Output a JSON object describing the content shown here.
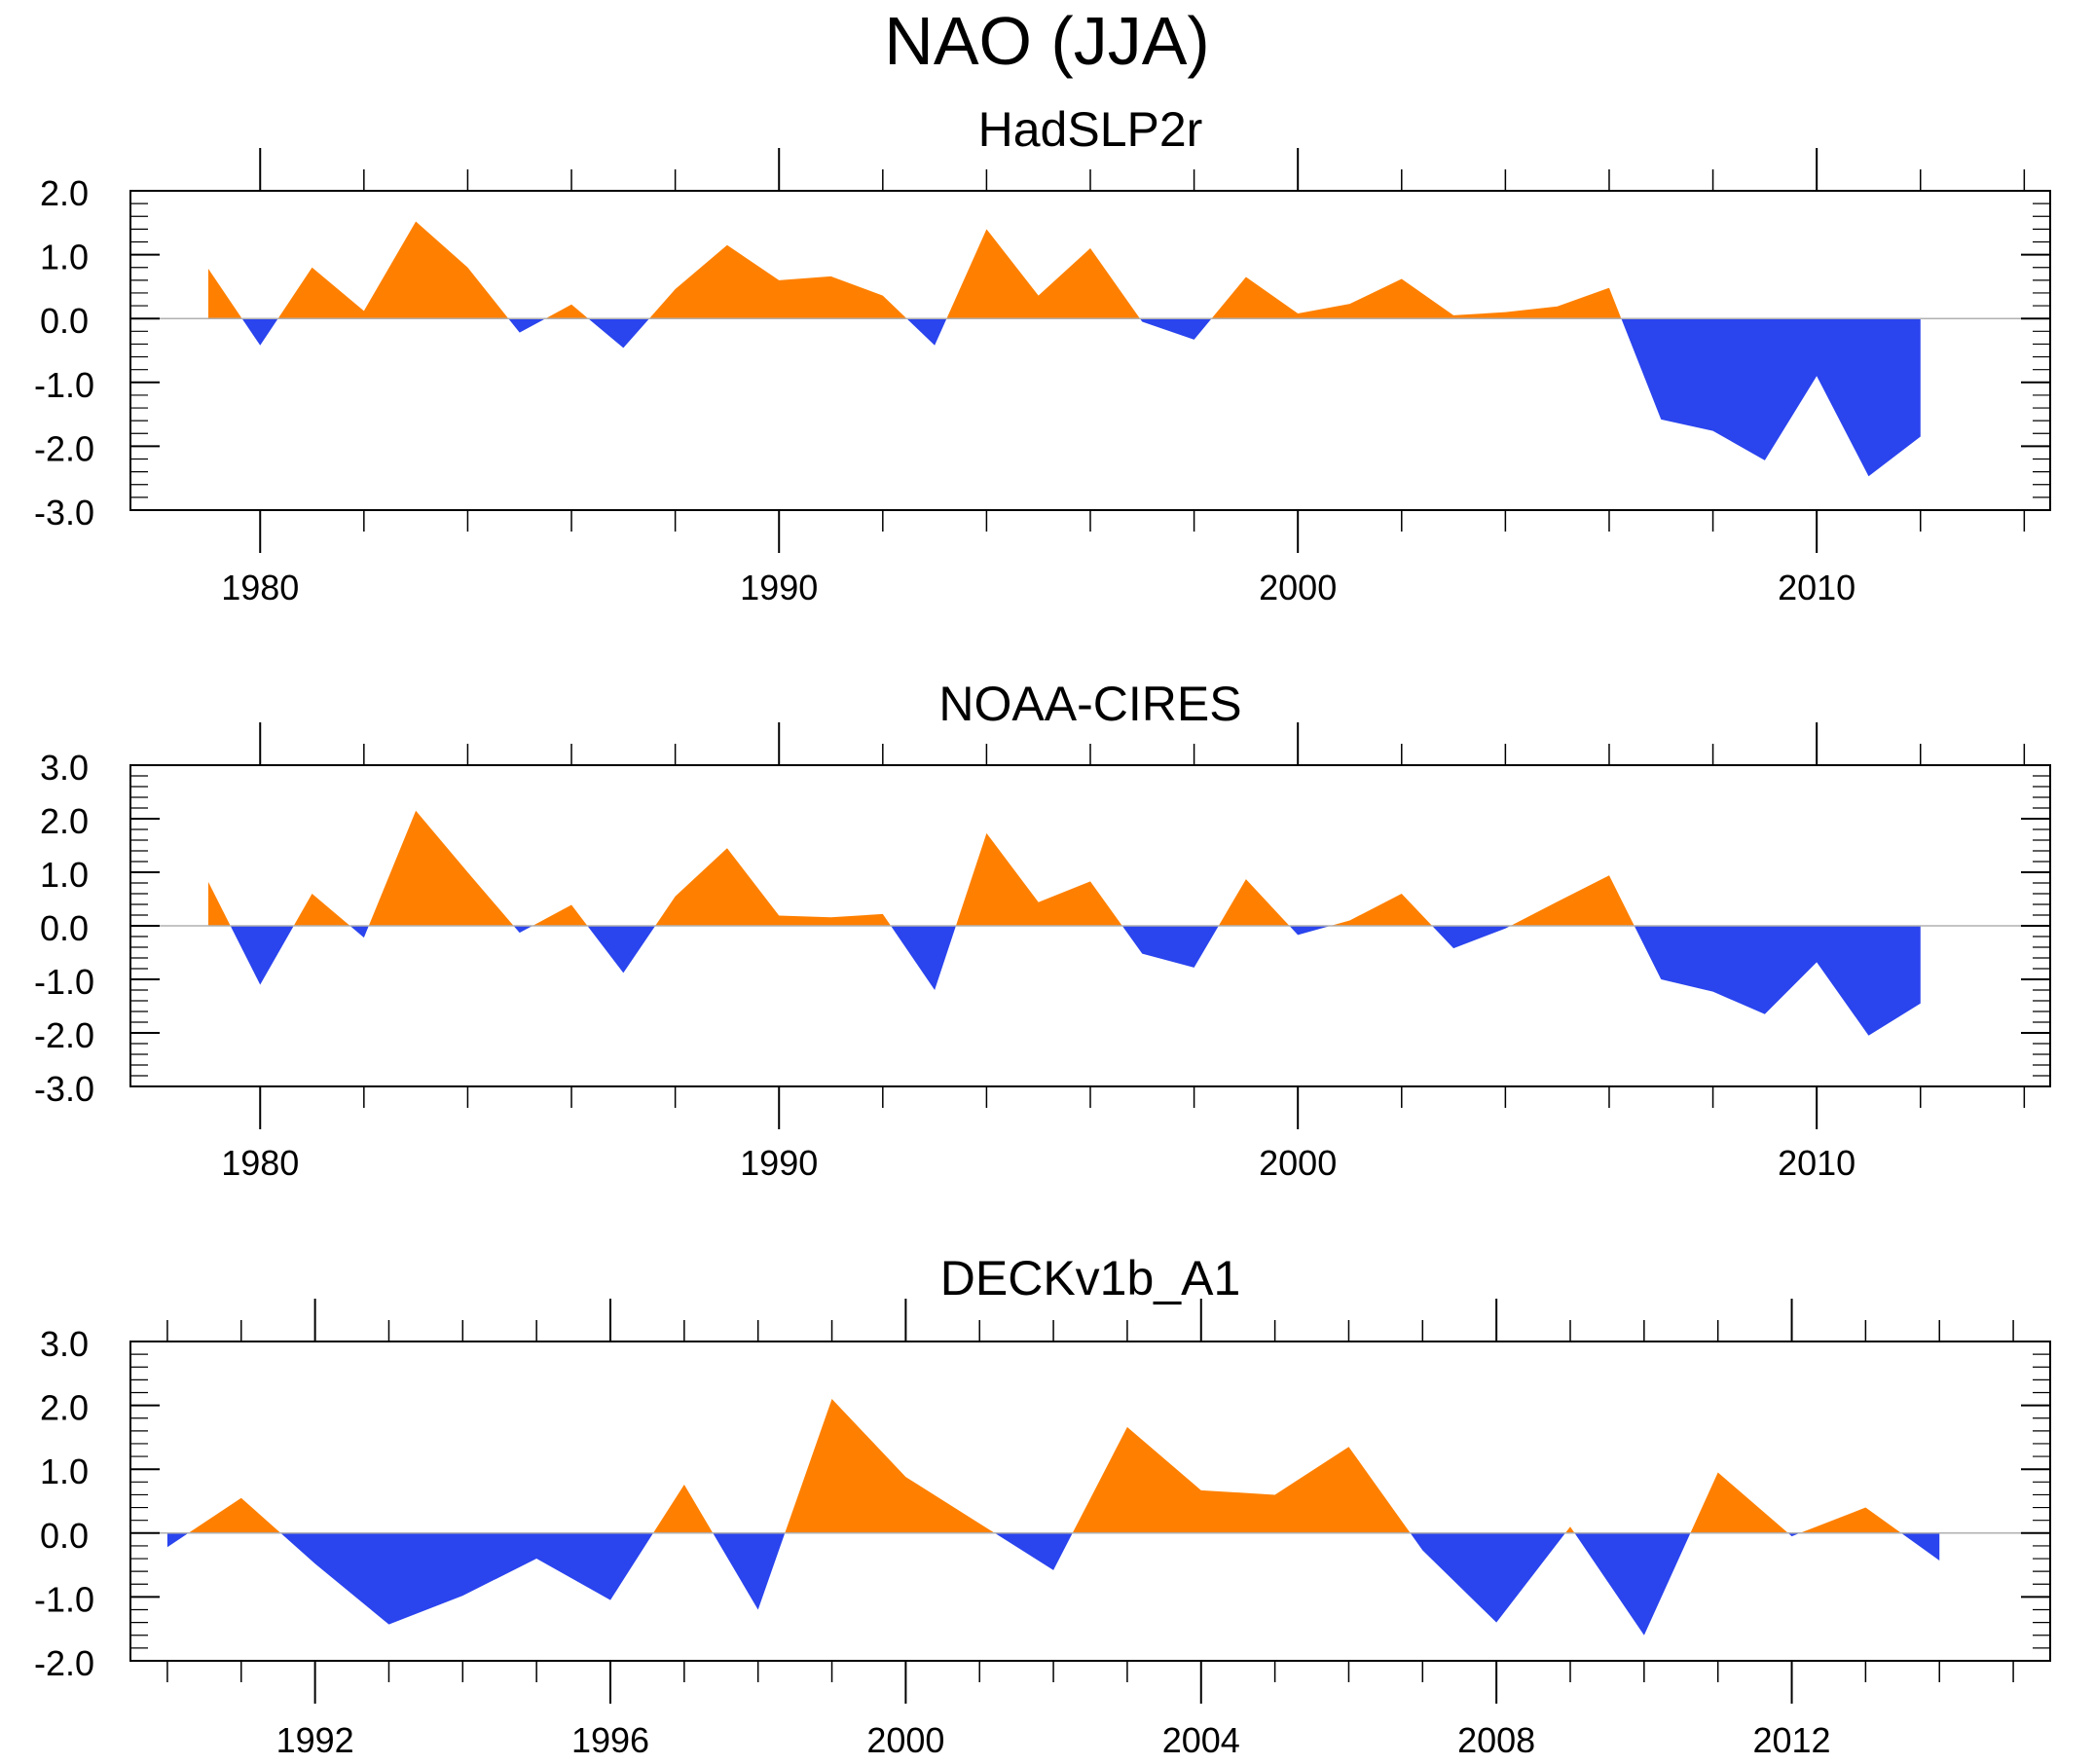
{
  "title": "NAO (JJA)",
  "colors": {
    "positive": "#ff8000",
    "negative": "#2a44ee",
    "axis": "#000000",
    "zero_line": "#b0b0b0"
  },
  "chart_data": [
    {
      "type": "area",
      "title": "HadSLP2r",
      "xlim": [
        1977.5,
        2014.5
      ],
      "ylim": [
        -3.0,
        2.0
      ],
      "yticks": [
        2.0,
        1.0,
        0.0,
        -1.0,
        -2.0,
        -3.0
      ],
      "ytick_labels": [
        "2.0",
        "1.0",
        "0.0",
        "-1.0",
        "-2.0",
        "-3.0"
      ],
      "ystep_minor": 0.2,
      "xticks_major": [
        1980,
        1990,
        2000,
        2010
      ],
      "xtick_labels": [
        "1980",
        "1990",
        "2000",
        "2010"
      ],
      "xticks_minor": [
        1982,
        1984,
        1986,
        1988,
        1992,
        1994,
        1996,
        1998,
        2002,
        2004,
        2006,
        2008,
        2012,
        2014
      ],
      "x": [
        1979,
        1980,
        1981,
        1982,
        1983,
        1984,
        1985,
        1986,
        1987,
        1988,
        1989,
        1990,
        1991,
        1992,
        1993,
        1994,
        1995,
        1996,
        1997,
        1998,
        1999,
        2000,
        2001,
        2002,
        2003,
        2004,
        2005,
        2006,
        2007,
        2008,
        2009,
        2010,
        2011,
        2012
      ],
      "values": [
        0.78,
        -0.42,
        0.8,
        0.12,
        1.52,
        0.8,
        -0.22,
        0.22,
        -0.46,
        0.46,
        1.15,
        0.6,
        0.66,
        0.36,
        -0.42,
        1.4,
        0.36,
        1.1,
        -0.05,
        -0.33,
        0.65,
        0.08,
        0.23,
        0.62,
        0.05,
        0.1,
        0.19,
        0.48,
        -1.58,
        -1.76,
        -2.22,
        -0.9,
        -2.47,
        -1.85
      ]
    },
    {
      "type": "area",
      "title": "NOAA-CIRES",
      "xlim": [
        1977.5,
        2014.5
      ],
      "ylim": [
        -3.0,
        3.0
      ],
      "yticks": [
        3.0,
        2.0,
        1.0,
        0.0,
        -1.0,
        -2.0,
        -3.0
      ],
      "ytick_labels": [
        "3.0",
        "2.0",
        "1.0",
        "0.0",
        "-1.0",
        "-2.0",
        "-3.0"
      ],
      "ystep_minor": 0.2,
      "xticks_major": [
        1980,
        1990,
        2000,
        2010
      ],
      "xtick_labels": [
        "1980",
        "1990",
        "2000",
        "2010"
      ],
      "xticks_minor": [
        1982,
        1984,
        1986,
        1988,
        1992,
        1994,
        1996,
        1998,
        2002,
        2004,
        2006,
        2008,
        2012,
        2014
      ],
      "x": [
        1979,
        1980,
        1981,
        1982,
        1983,
        1984,
        1985,
        1986,
        1987,
        1988,
        1989,
        1990,
        1991,
        1992,
        1993,
        1994,
        1995,
        1996,
        1997,
        1998,
        1999,
        2000,
        2001,
        2002,
        2003,
        2004,
        2005,
        2006,
        2007,
        2008,
        2009,
        2010,
        2011,
        2012
      ],
      "values": [
        0.82,
        -1.1,
        0.6,
        -0.22,
        2.15,
        1.0,
        -0.13,
        0.39,
        -0.88,
        0.55,
        1.45,
        0.19,
        0.16,
        0.22,
        -1.2,
        1.73,
        0.44,
        0.83,
        -0.52,
        -0.78,
        0.87,
        -0.17,
        0.1,
        0.6,
        -0.42,
        -0.05,
        0.45,
        0.94,
        -1.0,
        -1.23,
        -1.65,
        -0.68,
        -2.05,
        -1.45
      ]
    },
    {
      "type": "area",
      "title": "DECKv1b_A1",
      "xlim": [
        1989.5,
        2015.5
      ],
      "ylim": [
        -2.0,
        3.0
      ],
      "yticks": [
        3.0,
        2.0,
        1.0,
        0.0,
        -1.0,
        -2.0
      ],
      "ytick_labels": [
        "3.0",
        "2.0",
        "1.0",
        "0.0",
        "-1.0",
        "-2.0"
      ],
      "ystep_minor": 0.2,
      "xticks_major": [
        1992,
        1996,
        2000,
        2004,
        2008,
        2012
      ],
      "xtick_labels": [
        "1992",
        "1996",
        "2000",
        "2004",
        "2008",
        "2012"
      ],
      "xticks_minor": [
        1990,
        1991,
        1993,
        1994,
        1995,
        1997,
        1998,
        1999,
        2001,
        2002,
        2003,
        2005,
        2006,
        2007,
        2009,
        2010,
        2011,
        2013,
        2014,
        2015
      ],
      "x": [
        1990,
        1991,
        1992,
        1993,
        1994,
        1995,
        1996,
        1997,
        1998,
        1999,
        2000,
        2001,
        2002,
        2003,
        2004,
        2005,
        2006,
        2007,
        2008,
        2009,
        2010,
        2011,
        2012,
        2013,
        2014
      ],
      "values": [
        -0.22,
        0.55,
        -0.48,
        -1.43,
        -0.98,
        -0.4,
        -1.05,
        0.76,
        -1.2,
        2.1,
        0.88,
        0.15,
        -0.58,
        1.66,
        0.67,
        0.6,
        1.35,
        -0.27,
        -1.4,
        0.1,
        -1.6,
        0.95,
        -0.05,
        0.4,
        -0.43
      ]
    }
  ]
}
